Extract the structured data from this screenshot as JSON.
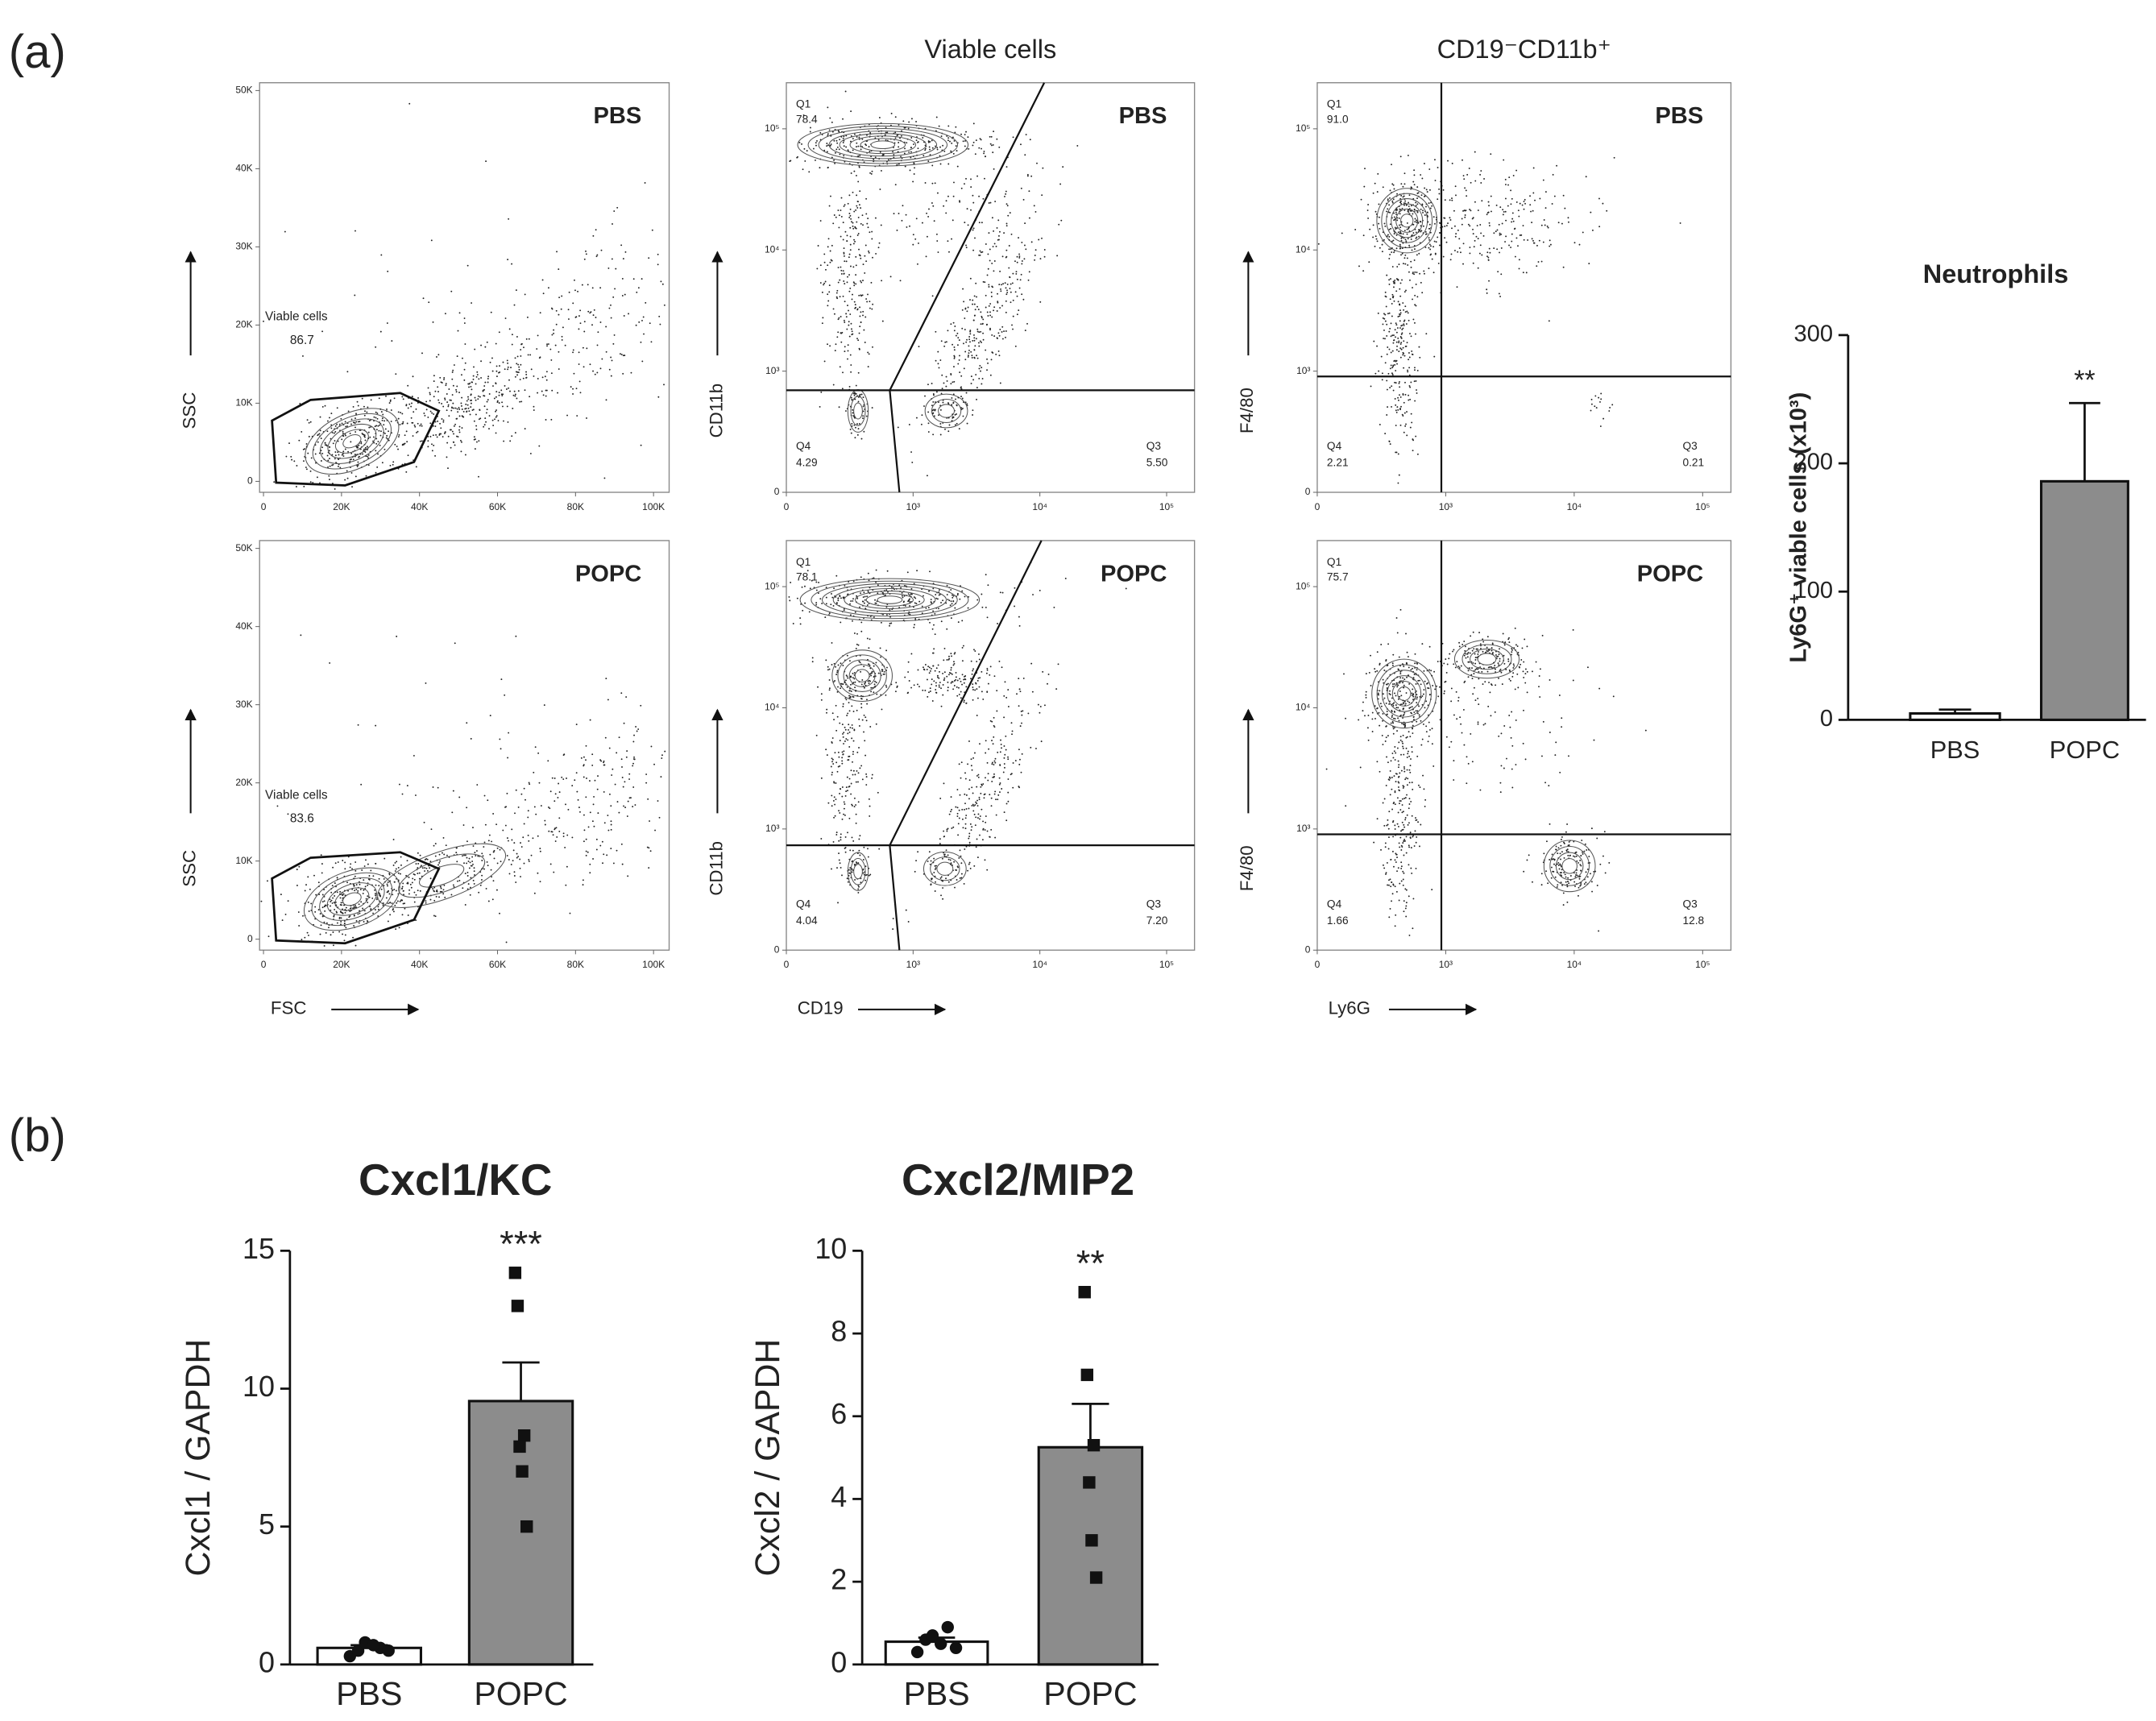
{
  "panel_labels": [
    "(a)",
    "(b)"
  ],
  "chart_data": [
    {
      "type": "flow",
      "title": "PBS",
      "ylabel": "SSC",
      "xlim": [
        -1000,
        104000
      ],
      "ylim": [
        -1400,
        51000
      ],
      "xticks": [
        0,
        {
          "value": 20000,
          "label": "20K"
        },
        {
          "value": 40000,
          "label": "40K"
        },
        {
          "value": 60000,
          "label": "60K"
        },
        {
          "value": 80000,
          "label": "80K"
        },
        {
          "value": 100000,
          "label": "100K"
        }
      ],
      "yticks": [
        0,
        {
          "value": 10000,
          "label": "10K"
        },
        {
          "value": 20000,
          "label": "20K"
        },
        {
          "value": 30000,
          "label": "30K"
        },
        {
          "value": 40000,
          "label": "40K"
        },
        {
          "value": 50000,
          "label": "50K"
        }
      ],
      "gates": [
        {
          "name": "Viable cells",
          "value": 86.7
        }
      ]
    },
    {
      "type": "flow",
      "title": "POPC",
      "ylabel": "SSC",
      "xlabel": "FSC",
      "xlim": [
        -1000,
        104000
      ],
      "ylim": [
        -1400,
        51000
      ],
      "xticks": [
        0,
        {
          "value": 20000,
          "label": "20K"
        },
        {
          "value": 40000,
          "label": "40K"
        },
        {
          "value": 60000,
          "label": "60K"
        },
        {
          "value": 80000,
          "label": "80K"
        },
        {
          "value": 100000,
          "label": "100K"
        }
      ],
      "yticks": [
        0,
        {
          "value": 10000,
          "label": "10K"
        },
        {
          "value": 20000,
          "label": "20K"
        },
        {
          "value": 30000,
          "label": "30K"
        },
        {
          "value": 40000,
          "label": "40K"
        },
        {
          "value": 50000,
          "label": "50K"
        }
      ],
      "gates": [
        {
          "name": "Viable cells",
          "value": 83.6
        }
      ]
    },
    {
      "type": "flow",
      "column_title": "Viable cells",
      "title": "PBS",
      "ylabel": "CD11b",
      "xscale": "biex",
      "yscale": "biex",
      "xlim": [
        16,
        166000
      ],
      "ylim": [
        21,
        240000
      ],
      "xticks": [
        0,
        {
          "value": 1000,
          "label": "10³"
        },
        {
          "value": 10000,
          "label": "10⁴"
        },
        {
          "value": 100000,
          "label": "10⁵"
        }
      ],
      "yticks": [
        0,
        {
          "value": 1000,
          "label": "10³"
        },
        {
          "value": 10000,
          "label": "10⁴"
        },
        {
          "value": 100000,
          "label": "10⁵"
        }
      ],
      "gates": [
        {
          "name": "Q1",
          "value": 78.4
        },
        {
          "name": "Q4",
          "value": 4.29
        },
        {
          "name": "Q3",
          "value": 5.5,
          "label": "5.50"
        }
      ]
    },
    {
      "type": "flow",
      "title": "POPC",
      "ylabel": "CD11b",
      "xlabel": "CD19",
      "xscale": "biex",
      "yscale": "biex",
      "xlim": [
        16,
        166000
      ],
      "ylim": [
        21,
        240000
      ],
      "xticks": [
        0,
        {
          "value": 1000,
          "label": "10³"
        },
        {
          "value": 10000,
          "label": "10⁴"
        },
        {
          "value": 100000,
          "label": "10⁵"
        }
      ],
      "yticks": [
        0,
        {
          "value": 1000,
          "label": "10³"
        },
        {
          "value": 10000,
          "label": "10⁴"
        },
        {
          "value": 100000,
          "label": "10⁵"
        }
      ],
      "gates": [
        {
          "name": "Q1",
          "value": 78.1
        },
        {
          "name": "Q4",
          "value": 4.04
        },
        {
          "name": "Q3",
          "value": 7.2,
          "label": "7.20"
        }
      ]
    },
    {
      "type": "flow",
      "column_title": "CD19⁻CD11b⁺",
      "title": "PBS",
      "ylabel": "F4/80",
      "xscale": "biex",
      "yscale": "biex",
      "xlim": [
        16,
        166000
      ],
      "ylim": [
        21,
        240000
      ],
      "xticks": [
        0,
        {
          "value": 1000,
          "label": "10³"
        },
        {
          "value": 10000,
          "label": "10⁴"
        },
        {
          "value": 100000,
          "label": "10⁵"
        }
      ],
      "yticks": [
        0,
        {
          "value": 1000,
          "label": "10³"
        },
        {
          "value": 10000,
          "label": "10⁴"
        },
        {
          "value": 100000,
          "label": "10⁵"
        }
      ],
      "gates": [
        {
          "name": "Q1",
          "value": 91.0,
          "label": "91.0"
        },
        {
          "name": "Q4",
          "value": 2.21
        },
        {
          "name": "Q3",
          "value": 0.21
        }
      ]
    },
    {
      "type": "flow",
      "title": "POPC",
      "ylabel": "F4/80",
      "xlabel": "Ly6G",
      "xscale": "biex",
      "yscale": "biex",
      "xlim": [
        16,
        166000
      ],
      "ylim": [
        21,
        240000
      ],
      "xticks": [
        0,
        {
          "value": 1000,
          "label": "10³"
        },
        {
          "value": 10000,
          "label": "10⁴"
        },
        {
          "value": 100000,
          "label": "10⁵"
        }
      ],
      "yticks": [
        0,
        {
          "value": 1000,
          "label": "10³"
        },
        {
          "value": 10000,
          "label": "10⁴"
        },
        {
          "value": 100000,
          "label": "10⁵"
        }
      ],
      "gates": [
        {
          "name": "Q1",
          "value": 75.7
        },
        {
          "name": "Q4",
          "value": 1.66
        },
        {
          "name": "Q3",
          "value": 12.8
        }
      ]
    },
    {
      "type": "bar",
      "title": "Neutrophils",
      "ylabel": "Ly6G⁺ viable cells (x10³)",
      "categories": [
        "PBS",
        "POPC"
      ],
      "values": [
        5,
        186
      ],
      "errors": [
        3,
        61
      ],
      "colors": [
        "#ffffff",
        "#8c8c8c"
      ],
      "ylim": [
        0,
        300
      ],
      "yticks": [
        0,
        100,
        200,
        300
      ],
      "annotations": [
        {
          "category": "POPC",
          "text": "**"
        }
      ]
    },
    {
      "type": "bar",
      "title": "Cxcl1/KC",
      "ylabel": "Cxcl1 / GAPDH",
      "categories": [
        "PBS",
        "POPC"
      ],
      "values": [
        0.6,
        9.55
      ],
      "errors": [
        0.1,
        1.4
      ],
      "colors": [
        "#ffffff",
        "#8c8c8c"
      ],
      "points": [
        [
          0.3,
          0.5,
          0.6,
          0.8,
          0.7,
          0.5
        ],
        [
          14.2,
          13.0,
          8.3,
          7.9,
          7.0,
          5.0
        ]
      ],
      "ylim": [
        0,
        15
      ],
      "yticks": [
        0,
        5,
        10,
        15
      ],
      "annotations": [
        {
          "category": "POPC",
          "text": "***"
        }
      ]
    },
    {
      "type": "bar",
      "title": "Cxcl2/MIP2",
      "ylabel": "Cxcl2 / GAPDH",
      "categories": [
        "PBS",
        "POPC"
      ],
      "values": [
        0.55,
        5.25
      ],
      "errors": [
        0.1,
        1.05
      ],
      "colors": [
        "#ffffff",
        "#8c8c8c"
      ],
      "points": [
        [
          0.3,
          0.6,
          0.9,
          0.7,
          0.5,
          0.4
        ],
        [
          9.0,
          7.0,
          5.3,
          4.4,
          3.0,
          2.1
        ]
      ],
      "ylim": [
        0,
        10
      ],
      "yticks": [
        0,
        2,
        4,
        6,
        8,
        10
      ],
      "annotations": [
        {
          "category": "POPC",
          "text": "**"
        }
      ]
    }
  ]
}
